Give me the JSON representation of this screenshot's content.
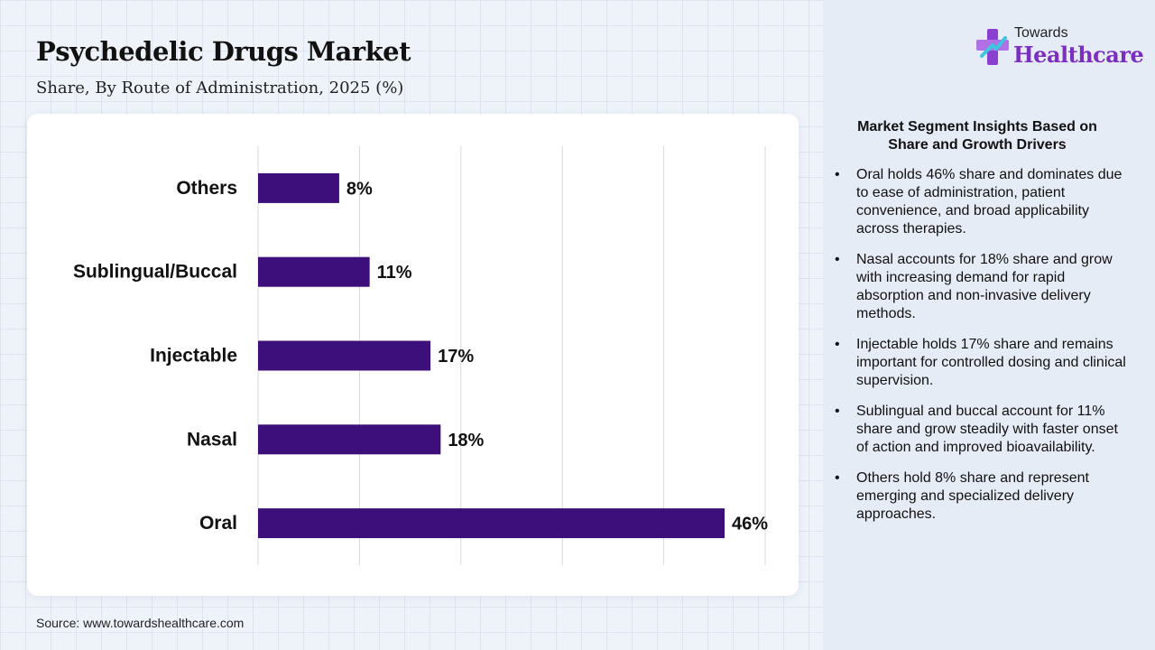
{
  "header": {
    "title": "Psychedelic Drugs Market",
    "subtitle": "Share, By Route of Administration, 2025 (%)"
  },
  "logo": {
    "top": "Towards",
    "main": "Healthcare"
  },
  "source": "Source: www.towardshealthcare.com",
  "insights": {
    "title": "Market Segment Insights Based on Share and Growth Drivers",
    "items": [
      "Oral holds 46% share and dominates due to ease of administration, patient convenience, and broad applicability across therapies.",
      "Nasal accounts for 18% share and grow with increasing demand for rapid absorption and non-invasive delivery methods.",
      "Injectable holds 17% share and remains important for controlled dosing and clinical supervision.",
      "Sublingual and buccal account for 11% share and grow steadily with faster onset of action and improved bioavailability.",
      "Others hold 8% share and represent emerging and specialized delivery approaches."
    ]
  },
  "colors": {
    "bar": "#3d0f7a",
    "accent": "#7b2fbf",
    "grid": "#d9d9d9"
  },
  "chart_data": {
    "type": "bar",
    "orientation": "horizontal",
    "categories": [
      "Others",
      "Sublingual/Buccal",
      "Injectable",
      "Nasal",
      "Oral"
    ],
    "values": [
      8,
      11,
      17,
      18,
      46
    ],
    "labels": [
      "8%",
      "11%",
      "17%",
      "18%",
      "46%"
    ],
    "xlim": [
      0,
      50
    ],
    "grid": true
  }
}
